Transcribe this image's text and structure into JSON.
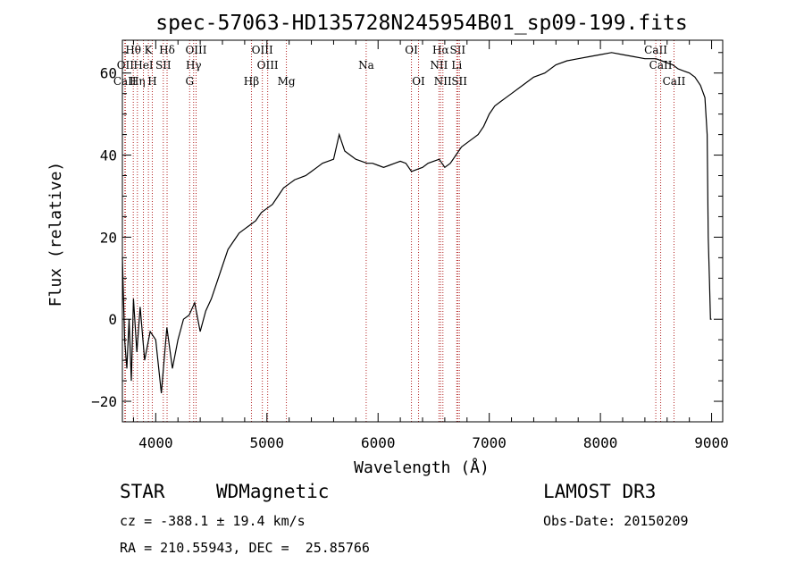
{
  "chart_data": {
    "type": "line",
    "title": "spec-57063-HD135728N245954B01_sp09-199.fits",
    "xlabel": "Wavelength (Å)",
    "ylabel": "Flux (relative)",
    "xlim": [
      3700,
      9100
    ],
    "ylim": [
      -25,
      68
    ],
    "xticks": [
      4000,
      5000,
      6000,
      7000,
      8000,
      9000
    ],
    "yticks": [
      -20,
      0,
      20,
      40,
      60
    ],
    "grid": false,
    "series": [
      {
        "x": [
          3700,
          3720,
          3740,
          3760,
          3780,
          3800,
          3830,
          3860,
          3900,
          3950,
          4000,
          4050,
          4100,
          4150,
          4200,
          4250,
          4300,
          4350,
          4400,
          4450,
          4500,
          4550,
          4600,
          4650,
          4700,
          4750,
          4800,
          4850,
          4900,
          4950,
          5000,
          5050,
          5100,
          5150,
          5200,
          5250,
          5300,
          5350,
          5400,
          5450,
          5500,
          5550,
          5600,
          5650,
          5700,
          5750,
          5800,
          5850,
          5900,
          5950,
          6000,
          6050,
          6100,
          6150,
          6200,
          6250,
          6300,
          6350,
          6400,
          6450,
          6500,
          6550,
          6600,
          6650,
          6700,
          6750,
          6800,
          6850,
          6900,
          6950,
          7000,
          7050,
          7100,
          7150,
          7200,
          7300,
          7400,
          7500,
          7600,
          7700,
          7800,
          7900,
          8000,
          8100,
          8200,
          8300,
          8400,
          8500,
          8550,
          8600,
          8650,
          8700,
          8750,
          8800,
          8850,
          8900,
          8940,
          8960,
          8970,
          8980,
          8990,
          9000
        ],
        "y": [
          15,
          -5,
          -12,
          0,
          -15,
          5,
          -8,
          3,
          -10,
          -3,
          -5,
          -18,
          -2,
          -12,
          -5,
          0,
          1,
          4,
          -3,
          2,
          5,
          9,
          13,
          17,
          19,
          21,
          22,
          23,
          24,
          26,
          27,
          28,
          30,
          32,
          33,
          34,
          34.5,
          35,
          36,
          37,
          38,
          38.5,
          39,
          45,
          41,
          40,
          39,
          38.5,
          38,
          38,
          37.5,
          37,
          37.5,
          38,
          38.5,
          38,
          36,
          36.5,
          37,
          38,
          38.5,
          39,
          37,
          38,
          40,
          42,
          43,
          44,
          45,
          47,
          50,
          52,
          53,
          54,
          55,
          57,
          59,
          60,
          62,
          63,
          63.5,
          64,
          64.5,
          65,
          64.5,
          64,
          63.5,
          63.5,
          63,
          62.5,
          62,
          61,
          60.5,
          60,
          59,
          57,
          54,
          45,
          20,
          10,
          0,
          0
        ]
      }
    ],
    "line_markers": [
      {
        "label": "Hθ",
        "x": 3798,
        "row": 0
      },
      {
        "label": "OII",
        "x": 3727,
        "row": 1
      },
      {
        "label": "CaII",
        "x": 3722,
        "row": 2
      },
      {
        "label": "Hη",
        "x": 3835,
        "row": 2
      },
      {
        "label": "K",
        "x": 3934,
        "row": 0
      },
      {
        "label": "HeI",
        "x": 3889,
        "row": 1
      },
      {
        "label": "H",
        "x": 3969,
        "row": 2
      },
      {
        "label": "SII",
        "x": 4068,
        "row": 1
      },
      {
        "label": "Hδ",
        "x": 4102,
        "row": 0
      },
      {
        "label": "OIII",
        "x": 4363,
        "row": 0
      },
      {
        "label": "Hγ",
        "x": 4341,
        "row": 1
      },
      {
        "label": "G",
        "x": 4305,
        "row": 2
      },
      {
        "label": "OIII",
        "x": 4959,
        "row": 0
      },
      {
        "label": "OIII",
        "x": 5007,
        "row": 1
      },
      {
        "label": "Hβ",
        "x": 4861,
        "row": 2
      },
      {
        "label": "Mg",
        "x": 5175,
        "row": 2
      },
      {
        "label": "Na",
        "x": 5893,
        "row": 1
      },
      {
        "label": "OI",
        "x": 6300,
        "row": 0
      },
      {
        "label": "OI",
        "x": 6364,
        "row": 2
      },
      {
        "label": "Hα",
        "x": 6563,
        "row": 0
      },
      {
        "label": "NII",
        "x": 6548,
        "row": 1
      },
      {
        "label": "NII",
        "x": 6583,
        "row": 2
      },
      {
        "label": "SII",
        "x": 6716,
        "row": 0
      },
      {
        "label": "Li",
        "x": 6708,
        "row": 1
      },
      {
        "label": "SII",
        "x": 6731,
        "row": 2
      },
      {
        "label": "CaII",
        "x": 8498,
        "row": 0
      },
      {
        "label": "CaII",
        "x": 8542,
        "row": 1
      },
      {
        "label": "CaII",
        "x": 8662,
        "row": 2
      }
    ]
  },
  "info": {
    "class": "STAR",
    "subclass": "WDMagnetic",
    "survey": "LAMOST DR3",
    "cz": "cz = -388.1 ± 19.4 km/s",
    "obs_date": "Obs-Date: 20150209",
    "radec": "RA = 210.55943, DEC =  25.85766"
  },
  "colors": {
    "spectrum": "#000000",
    "marker_lines": "#b22222"
  }
}
